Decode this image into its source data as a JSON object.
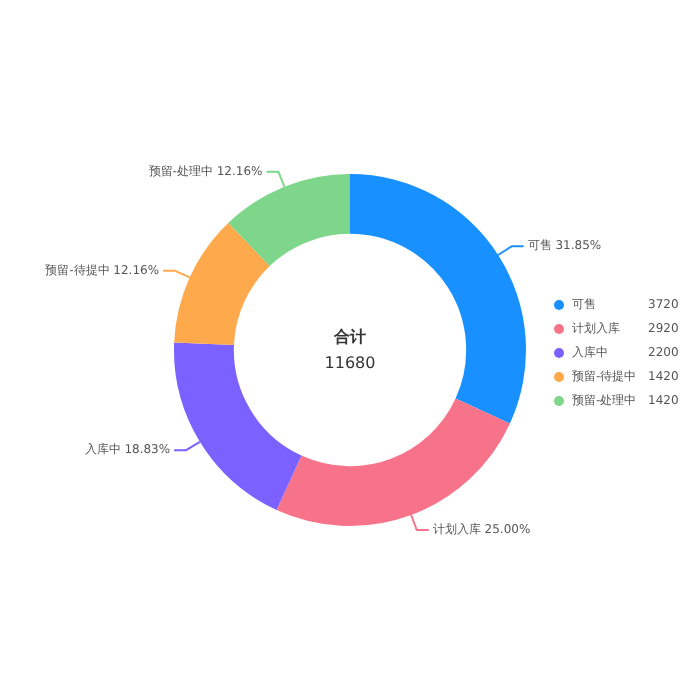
{
  "chart_data": {
    "type": "donut",
    "title": "合计",
    "annotations": [
      "11680",
      {
        "text": "可售 31.85%",
        "x": "可售"
      },
      {
        "text": "计划入库 25.00%",
        "x": "计划入库"
      },
      {
        "text": "入库中 18.83%",
        "x": "入库中"
      },
      {
        "text": "预留-待提中 12.16%",
        "x": "预留-待提中"
      },
      {
        "text": "预留-处理中 12.16%",
        "x": "预留-处理中"
      }
    ],
    "categories": [
      "可售",
      "计划入库",
      "入库中",
      "预留-待提中",
      "预留-处理中"
    ],
    "values": [
      3720,
      2920,
      2200,
      1420,
      1420
    ],
    "data_labels": true,
    "colors": [
      "#1890ff",
      "#f7738a",
      "#7b61ff",
      "#ffa94d",
      "#7ed68a"
    ],
    "legend": "right"
  }
}
